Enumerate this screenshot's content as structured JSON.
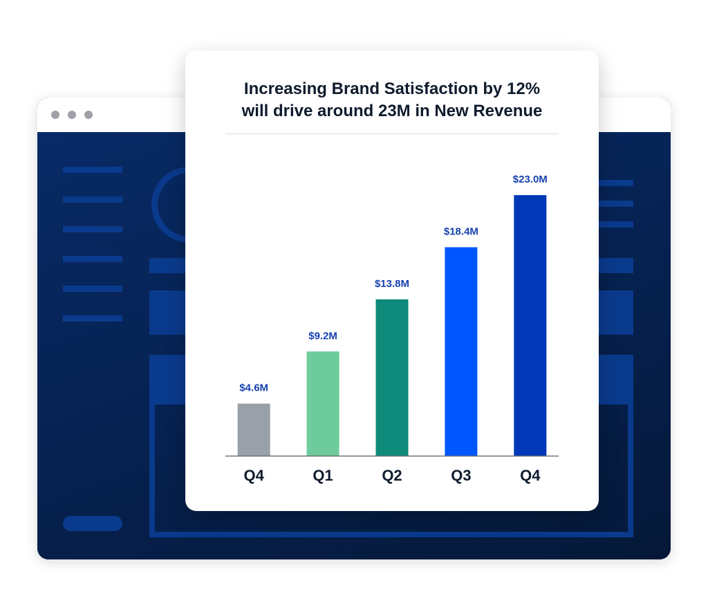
{
  "browser": {
    "dot_color": "#9ea1a6",
    "body_color": "#06204f",
    "accent": "#0a3a8c"
  },
  "chart_data": {
    "type": "bar",
    "title": "Increasing Brand Satisfaction by 12%\nwill drive around 23M in New Revenue",
    "categories": [
      "Q4",
      "Q1",
      "Q2",
      "Q3",
      "Q4"
    ],
    "values": [
      4.6,
      9.2,
      13.8,
      18.4,
      23.0
    ],
    "value_labels": [
      "$4.6M",
      "$9.2M",
      "$13.8M",
      "$18.4M",
      "$23.0M"
    ],
    "colors": [
      "#9aa0a8",
      "#6ecb9b",
      "#0e8a7a",
      "#0057ff",
      "#0038b8"
    ],
    "label_color": "#1741b0",
    "ylim": [
      0,
      26
    ],
    "grid": false,
    "legend": "none"
  }
}
